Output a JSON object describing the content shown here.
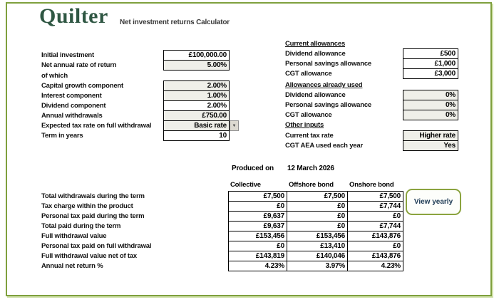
{
  "header": {
    "logo": "Quilter",
    "title": "Net investment returns Calculator"
  },
  "inputs_left": {
    "rows": [
      {
        "label": "Initial investment",
        "value": "£100,000.00",
        "fill": "white"
      },
      {
        "label": "Net annual rate of return",
        "value": "5.00%",
        "fill": "grey"
      },
      {
        "label": "of which",
        "value": null
      },
      {
        "label": "Capital growth component",
        "value": "2.00%",
        "fill": "grey"
      },
      {
        "label": "Interest component",
        "value": "1.00%",
        "fill": "grey"
      },
      {
        "label": "Dividend component",
        "value": "2.00%",
        "fill": "white"
      },
      {
        "label": "Annual withdrawals",
        "value": "£750.00",
        "fill": "grey"
      },
      {
        "label": "Expected tax rate on full withdrawal",
        "value": "Basic rate",
        "fill": "grey",
        "dropdown": true
      },
      {
        "label": "Term in years",
        "value": "10",
        "fill": "white"
      }
    ]
  },
  "inputs_right": {
    "sections": [
      {
        "heading": "Current allowances",
        "rows": [
          {
            "label": "Dividend allowance",
            "value": "£500",
            "fill": "white"
          },
          {
            "label": "Personal savings allowance",
            "value": "£1,000",
            "fill": "white"
          },
          {
            "label": "CGT allowance",
            "value": "£3,000",
            "fill": "white"
          }
        ]
      },
      {
        "heading": "Allowances already used",
        "rows": [
          {
            "label": "Dividend allowance",
            "value": "0%",
            "fill": "grey"
          },
          {
            "label": "Personal savings allowance",
            "value": "0%",
            "fill": "grey"
          },
          {
            "label": "CGT allowance",
            "value": "0%",
            "fill": "grey"
          }
        ]
      },
      {
        "heading": "Other inputs",
        "rows": [
          {
            "label": "Current tax rate",
            "value": "Higher rate",
            "fill": "grey"
          },
          {
            "label": "CGT AEA used each year",
            "value": "Yes",
            "fill": "grey"
          }
        ]
      }
    ]
  },
  "produced_on": {
    "label": "Produced on",
    "date": "12 March 2026"
  },
  "results": {
    "columns": [
      "Collective",
      "Offshore bond",
      "Onshore bond"
    ],
    "rows": [
      {
        "label": "Total withdrawals during the term",
        "values": [
          "£7,500",
          "£7,500",
          "£7,500"
        ]
      },
      {
        "label": "Tax charge within the product",
        "values": [
          "£0",
          "£0",
          "£7,744"
        ]
      },
      {
        "label": "Personal tax paid during the term",
        "values": [
          "£9,637",
          "£0",
          "£0"
        ]
      },
      {
        "label": "Total paid during the term",
        "values": [
          "£9,637",
          "£0",
          "£7,744"
        ]
      },
      {
        "label": "Full withdrawal value",
        "values": [
          "£153,456",
          "£153,456",
          "£143,876"
        ]
      },
      {
        "label": "Personal tax paid on full withdrawal",
        "values": [
          "£0",
          "£13,410",
          "£0"
        ]
      },
      {
        "label": "Full withdrawal value net of tax",
        "values": [
          "£143,819",
          "£140,046",
          "£143,876"
        ]
      },
      {
        "label": "Annual net return %",
        "values": [
          "4.23%",
          "3.97%",
          "4.23%"
        ]
      }
    ]
  },
  "actions": {
    "view_yearly_label": "View yearly"
  },
  "icons": {
    "dropdown_arrow": "▼"
  },
  "colors": {
    "brand_green": "#2f5743",
    "frame_border": "#7fa03e",
    "button_border": "#8ba33f",
    "box_fill": "#efefe9"
  }
}
